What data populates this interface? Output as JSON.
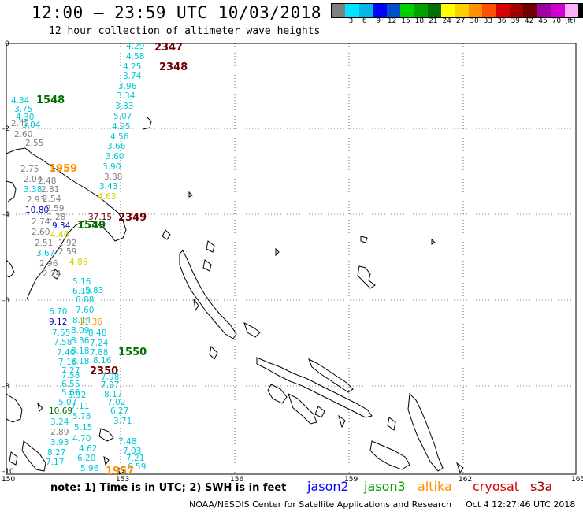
{
  "header": {
    "title": "12:00 – 23:59 UTC 10/03/2018",
    "subtitle": "12 hour collection of altimeter wave heights"
  },
  "color_scale": {
    "colors": [
      "#808080",
      "#00e5ff",
      "#00b8e6",
      "#0000ff",
      "#0050c8",
      "#00d000",
      "#00a000",
      "#007000",
      "#ffff00",
      "#ffd000",
      "#ff9000",
      "#ff5000",
      "#d80000",
      "#a00000",
      "#700000",
      "#a000a0",
      "#d000d0",
      "#ffb0ff",
      "#000000"
    ],
    "labels": [
      "3",
      "6",
      "9",
      "12",
      "15",
      "18",
      "21",
      "24",
      "27",
      "30",
      "33",
      "36",
      "39",
      "42",
      "45",
      "70",
      "(ft)"
    ]
  },
  "axes": {
    "lon_ticks": [
      "150",
      "153",
      "156",
      "159",
      "162",
      "165"
    ],
    "lat_ticks": [
      "0",
      "-2",
      "-4",
      "-6",
      "-8",
      "-10"
    ]
  },
  "passes": [
    {
      "time": "2347",
      "color": "#700000"
    },
    {
      "time": "2348",
      "color": "#700000"
    },
    {
      "time": "1548",
      "color": "#007000"
    },
    {
      "time": "1959",
      "color": "#ff9000"
    },
    {
      "time": "2349",
      "color": "#700000"
    },
    {
      "time": "1549",
      "color": "#007000"
    },
    {
      "time": "1550",
      "color": "#007000"
    },
    {
      "time": "2350",
      "color": "#700000"
    },
    {
      "time": "1957",
      "color": "#ff9000"
    }
  ],
  "observations": [
    {
      "v": "4.29",
      "c": "#00c8d8"
    },
    {
      "v": "4.58",
      "c": "#00c8d8"
    },
    {
      "v": "4.25",
      "c": "#00c8d8"
    },
    {
      "v": "3.74",
      "c": "#00c8d8"
    },
    {
      "v": "3.96",
      "c": "#00c8d8"
    },
    {
      "v": "3.34",
      "c": "#00c8d8"
    },
    {
      "v": "3.83",
      "c": "#00c8d8"
    },
    {
      "v": "5.07",
      "c": "#00c8d8"
    },
    {
      "v": "4.95",
      "c": "#00c8d8"
    },
    {
      "v": "4.56",
      "c": "#00c8d8"
    },
    {
      "v": "3.66",
      "c": "#00c8d8"
    },
    {
      "v": "3.60",
      "c": "#00c8d8"
    },
    {
      "v": "3.90",
      "c": "#00c8d8"
    },
    {
      "v": "3.88",
      "c": "#808080"
    },
    {
      "v": "3.43",
      "c": "#00c8d8"
    },
    {
      "v": "4.63",
      "c": "#d8d000"
    },
    {
      "v": "37.15",
      "c": "#700000"
    },
    {
      "v": "4.34",
      "c": "#00c8d8"
    },
    {
      "v": "3.75",
      "c": "#00c8d8"
    },
    {
      "v": "4.30",
      "c": "#00c8d8"
    },
    {
      "v": "2.42",
      "c": "#808080"
    },
    {
      "v": "3.04",
      "c": "#00c8d8"
    },
    {
      "v": "2.60",
      "c": "#808080"
    },
    {
      "v": "2.55",
      "c": "#808080"
    },
    {
      "v": "2.75",
      "c": "#808080"
    },
    {
      "v": "2.04",
      "c": "#808080"
    },
    {
      "v": "2.48",
      "c": "#808080"
    },
    {
      "v": "3.38",
      "c": "#00c8d8"
    },
    {
      "v": "2.81",
      "c": "#808080"
    },
    {
      "v": "2.93",
      "c": "#808080"
    },
    {
      "v": "2.54",
      "c": "#808080"
    },
    {
      "v": "10.80",
      "c": "#0000c8"
    },
    {
      "v": "2.59",
      "c": "#808080"
    },
    {
      "v": "2.74",
      "c": "#808080"
    },
    {
      "v": "1.28",
      "c": "#808080"
    },
    {
      "v": "9.34",
      "c": "#0000c8"
    },
    {
      "v": "2.60",
      "c": "#808080"
    },
    {
      "v": "4.46",
      "c": "#d8d000"
    },
    {
      "v": "2.51",
      "c": "#808080"
    },
    {
      "v": "1.92",
      "c": "#808080"
    },
    {
      "v": "3.67",
      "c": "#00c8d8"
    },
    {
      "v": "2.59",
      "c": "#808080"
    },
    {
      "v": "2.96",
      "c": "#808080"
    },
    {
      "v": "4.86",
      "c": "#d8d000"
    },
    {
      "v": "2.24",
      "c": "#808080"
    },
    {
      "v": "5.16",
      "c": "#00c8d8"
    },
    {
      "v": "6.10",
      "c": "#00c8d8"
    },
    {
      "v": "5.83",
      "c": "#00c8d8"
    },
    {
      "v": "6.88",
      "c": "#00c8d8"
    },
    {
      "v": "6.70",
      "c": "#00c8d8"
    },
    {
      "v": "7.60",
      "c": "#00c8d8"
    },
    {
      "v": "9.12",
      "c": "#0000c8"
    },
    {
      "v": "8.14",
      "c": "#00c8d8"
    },
    {
      "v": "11.36",
      "c": "#ff9000"
    },
    {
      "v": "7.55",
      "c": "#00c8d8"
    },
    {
      "v": "8.09",
      "c": "#00c8d8"
    },
    {
      "v": "8.48",
      "c": "#00c8d8"
    },
    {
      "v": "7.58",
      "c": "#00c8d8"
    },
    {
      "v": "8.36",
      "c": "#00c8d8"
    },
    {
      "v": "7.24",
      "c": "#00c8d8"
    },
    {
      "v": "7.40",
      "c": "#00c8d8"
    },
    {
      "v": "8.18",
      "c": "#00c8d8"
    },
    {
      "v": "7.88",
      "c": "#00c8d8"
    },
    {
      "v": "7.16",
      "c": "#00c8d8"
    },
    {
      "v": "8.18",
      "c": "#00c8d8"
    },
    {
      "v": "8.16",
      "c": "#00c8d8"
    },
    {
      "v": "7.27",
      "c": "#00c8d8"
    },
    {
      "v": "7.58",
      "c": "#00c8d8"
    },
    {
      "v": "7.98",
      "c": "#00c8d8"
    },
    {
      "v": "6.55",
      "c": "#00c8d8"
    },
    {
      "v": "7.97",
      "c": "#00c8d8"
    },
    {
      "v": "5.66",
      "c": "#00c8d8"
    },
    {
      "v": "5.92",
      "c": "#00c8d8"
    },
    {
      "v": "8.17",
      "c": "#00c8d8"
    },
    {
      "v": "5.07",
      "c": "#00c8d8"
    },
    {
      "v": "7.11",
      "c": "#00c8d8"
    },
    {
      "v": "7.02",
      "c": "#00c8d8"
    },
    {
      "v": "10.69",
      "c": "#007000"
    },
    {
      "v": "6.27",
      "c": "#00c8d8"
    },
    {
      "v": "3.24",
      "c": "#00c8d8"
    },
    {
      "v": "5.78",
      "c": "#00c8d8"
    },
    {
      "v": "3.71",
      "c": "#00c8d8"
    },
    {
      "v": "2.89",
      "c": "#808080"
    },
    {
      "v": "5.15",
      "c": "#00c8d8"
    },
    {
      "v": "4.70",
      "c": "#00c8d8"
    },
    {
      "v": "3.93",
      "c": "#00c8d8"
    },
    {
      "v": "7.48",
      "c": "#00c8d8"
    },
    {
      "v": "4.62",
      "c": "#00c8d8"
    },
    {
      "v": "8.27",
      "c": "#00c8d8"
    },
    {
      "v": "7.03",
      "c": "#00c8d8"
    },
    {
      "v": "7.17",
      "c": "#00c8d8"
    },
    {
      "v": "6.20",
      "c": "#00c8d8"
    },
    {
      "v": "7.21",
      "c": "#00c8d8"
    },
    {
      "v": "5.96",
      "c": "#00c8d8"
    },
    {
      "v": "6.59",
      "c": "#00c8d8"
    }
  ],
  "footer": {
    "note": "note: 1) Time is in UTC; 2) SWH is in feet",
    "satellites": [
      {
        "name": "jason2",
        "color": "#0000ff"
      },
      {
        "name": "jason3",
        "color": "#00a000"
      },
      {
        "name": "altika",
        "color": "#ff9000"
      },
      {
        "name": "cryosat",
        "color": "#d80000"
      },
      {
        "name": "s3a",
        "color": "#a00000"
      }
    ],
    "credit": "NOAA/NESDIS Center for Satellite Applications and Research",
    "timestamp": "Oct  4 12:27:46 UTC 2018"
  }
}
